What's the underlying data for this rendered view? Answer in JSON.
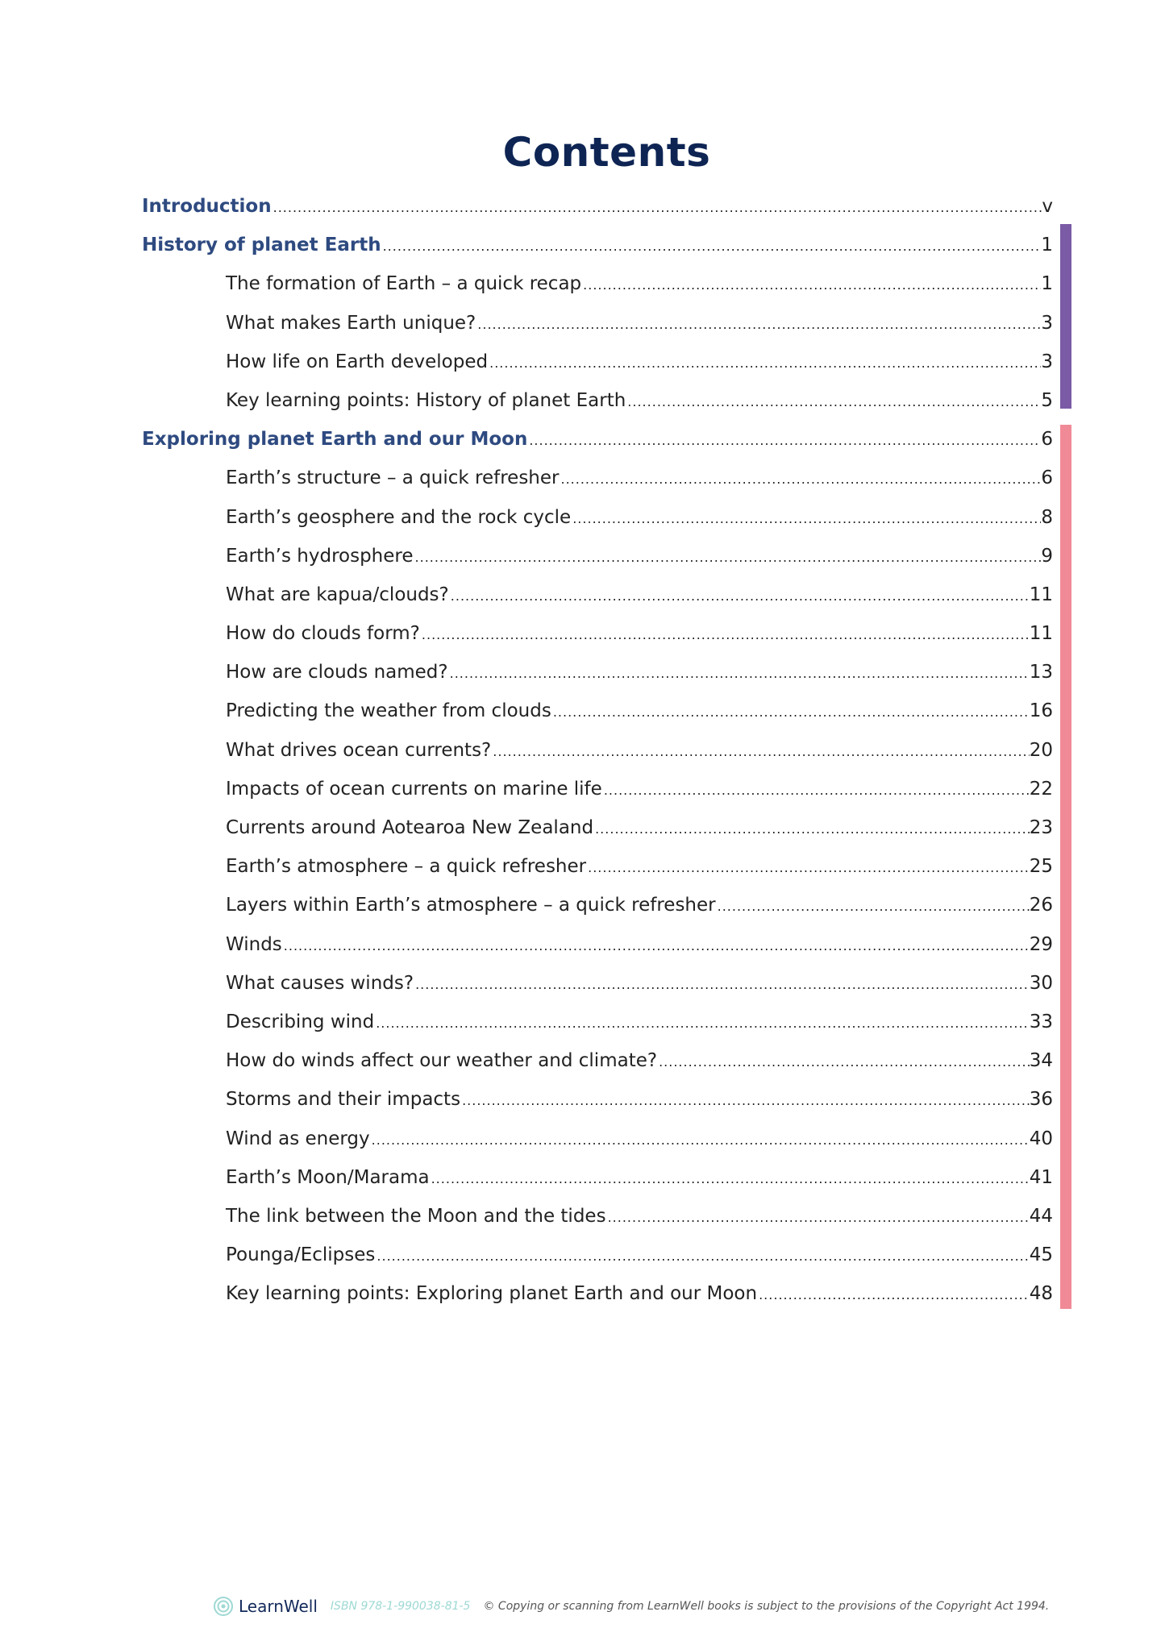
{
  "title": "Contents",
  "colors": {
    "title": "#0e2554",
    "heading": "#2e4a80",
    "section1_bar": "#7b5aa6",
    "section2_bar": "#f08a96",
    "isbn": "#9ed9d4"
  },
  "entries": [
    {
      "label": "Introduction",
      "page": "v",
      "level": 1
    },
    {
      "label": "History of planet Earth",
      "page": "1",
      "level": 1
    },
    {
      "label": "The formation of Earth – a quick recap",
      "page": "1",
      "level": 2
    },
    {
      "label": "What makes Earth unique?",
      "page": "3",
      "level": 2
    },
    {
      "label": "How life on Earth developed",
      "page": "3",
      "level": 2
    },
    {
      "label": "Key learning points: History of planet Earth",
      "page": "5",
      "level": 2
    },
    {
      "label": "Exploring planet Earth and our Moon",
      "page": "6",
      "level": 1
    },
    {
      "label": "Earth’s structure – a quick refresher",
      "page": "6",
      "level": 2
    },
    {
      "label": "Earth’s geosphere and the rock cycle",
      "page": "8",
      "level": 2
    },
    {
      "label": "Earth’s hydrosphere",
      "page": "9",
      "level": 2
    },
    {
      "label": "What are kapua/clouds?",
      "page": "11",
      "level": 2
    },
    {
      "label": "How do clouds form?",
      "page": "11",
      "level": 2
    },
    {
      "label": "How are clouds named?",
      "page": "13",
      "level": 2
    },
    {
      "label": "Predicting the weather from clouds",
      "page": "16",
      "level": 2
    },
    {
      "label": "What drives ocean currents?",
      "page": "20",
      "level": 2
    },
    {
      "label": "Impacts of ocean currents on marine life",
      "page": "22",
      "level": 2
    },
    {
      "label": "Currents around Aotearoa New Zealand",
      "page": "23",
      "level": 2
    },
    {
      "label": "Earth’s atmosphere – a quick refresher",
      "page": "25",
      "level": 2
    },
    {
      "label": "Layers within Earth’s atmosphere – a quick refresher",
      "page": "26",
      "level": 2
    },
    {
      "label": "Winds",
      "page": "29",
      "level": 2
    },
    {
      "label": "What causes winds?",
      "page": "30",
      "level": 2
    },
    {
      "label": "Describing wind",
      "page": "33",
      "level": 2
    },
    {
      "label": "How do winds affect our weather and climate?",
      "page": "34",
      "level": 2
    },
    {
      "label": "Storms and their impacts",
      "page": "36",
      "level": 2
    },
    {
      "label": "Wind as energy",
      "page": "40",
      "level": 2
    },
    {
      "label": "Earth’s Moon/Marama",
      "page": "41",
      "level": 2
    },
    {
      "label": "The link between the Moon and the tides",
      "page": "44",
      "level": 2
    },
    {
      "label": "Pounga/Eclipses",
      "page": "45",
      "level": 2
    },
    {
      "label": "Key learning points: Exploring planet Earth and our Moon",
      "page": "48",
      "level": 2
    }
  ],
  "footer": {
    "logo_text": "LearnWell",
    "logo_icon": "spiral-icon",
    "isbn": "ISBN 978-1-990038-81-5",
    "copyright": "© Copying or scanning from LearnWell books is subject to the provisions of the Copyright Act 1994."
  }
}
